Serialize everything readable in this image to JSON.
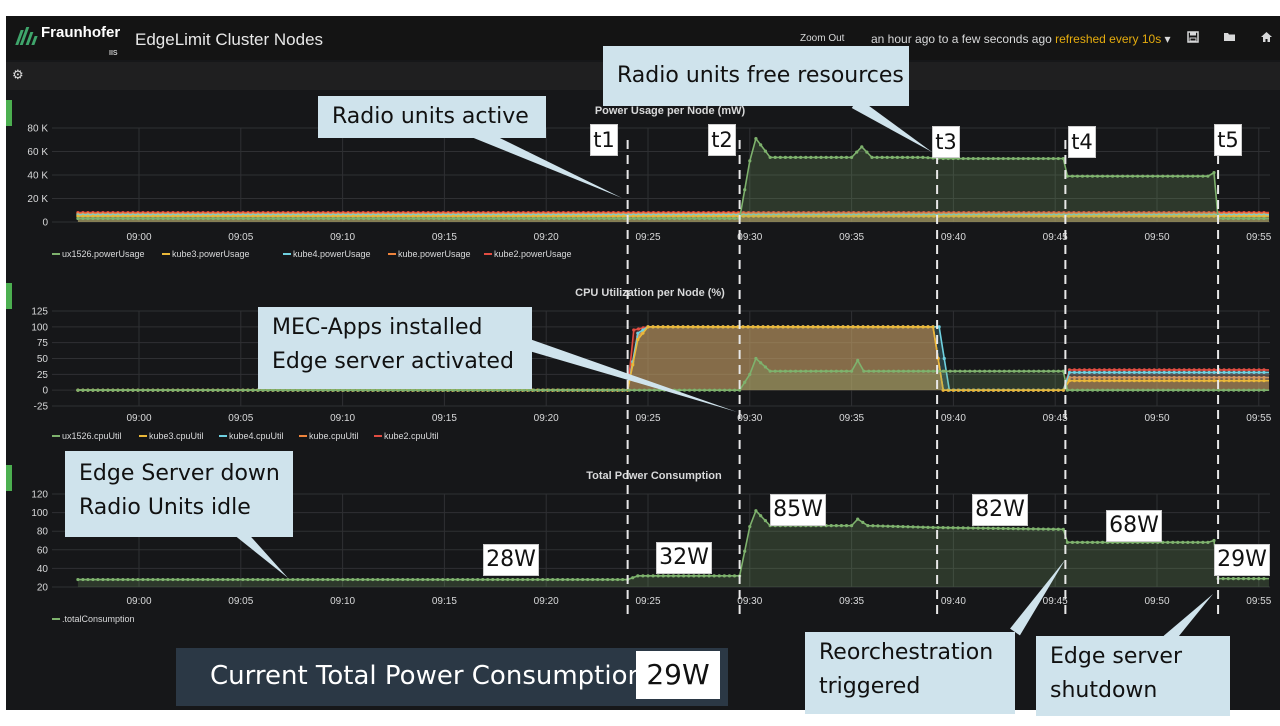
{
  "header": {
    "logo_text": "Fraunhofer",
    "logo_sub": "IIS",
    "title": "EdgeLimit Cluster Nodes",
    "zoom_out": "Zoom Out",
    "time_range": "an hour ago to a few seconds ago",
    "refresh": "refreshed every 10s",
    "icons": [
      "save-icon",
      "folder-icon",
      "home-icon"
    ]
  },
  "row_icon": "gear-icon",
  "colors": {
    "ux1526": "#7eb26d",
    "kube3": "#eab839",
    "kube4": "#6ed0e0",
    "kube": "#ef843c",
    "kube2": "#e24d42",
    "accent": "#4caf50",
    "background": "#161719"
  },
  "chart_data": [
    {
      "type": "area",
      "title": "Power Usage per Node (mW)",
      "x_ticks": [
        "09:00",
        "09:05",
        "09:10",
        "09:15",
        "09:20",
        "09:25",
        "09:30",
        "09:35",
        "09:40",
        "09:45",
        "09:50",
        "09:55"
      ],
      "y_ticks": [
        "0",
        "20 K",
        "40 K",
        "60 K",
        "80 K"
      ],
      "ylim": [
        0,
        85000
      ],
      "series": [
        {
          "name": "ux1526.powerUsage",
          "points": [
            [
              "08:57",
              3000
            ],
            [
              "09:29.5",
              3000
            ],
            [
              "09:30",
              52000
            ],
            [
              "09:30.3",
              71000
            ],
            [
              "09:31",
              55000
            ],
            [
              "09:35",
              55000
            ],
            [
              "09:35.5",
              64000
            ],
            [
              "09:36",
              55000
            ],
            [
              "09:38.5",
              55000
            ],
            [
              "09:39.5",
              54000
            ],
            [
              "09:45.4",
              54000
            ],
            [
              "09:45.6",
              39000
            ],
            [
              "09:52.5",
              39000
            ],
            [
              "09:52.8",
              42000
            ],
            [
              "09:53",
              3000
            ],
            [
              "09:55.5",
              3000
            ]
          ]
        },
        {
          "name": "kube3.powerUsage",
          "points": [
            [
              "08:57",
              5000
            ],
            [
              "09:55.5",
              5000
            ]
          ]
        },
        {
          "name": "kube4.powerUsage",
          "points": [
            [
              "08:57",
              6000
            ],
            [
              "09:55.5",
              6000
            ]
          ]
        },
        {
          "name": "kube.powerUsage",
          "points": [
            [
              "08:57",
              7000
            ],
            [
              "09:55.5",
              7000
            ]
          ]
        },
        {
          "name": "kube2.powerUsage",
          "points": [
            [
              "08:57",
              8000
            ],
            [
              "09:55.5",
              8000
            ]
          ]
        }
      ]
    },
    {
      "type": "area",
      "title": "CPU Utilization per Node (%)",
      "x_ticks": [
        "09:00",
        "09:05",
        "09:10",
        "09:15",
        "09:20",
        "09:25",
        "09:30",
        "09:35",
        "09:40",
        "09:45",
        "09:50",
        "09:55"
      ],
      "y_ticks": [
        "-25",
        "0",
        "25",
        "50",
        "75",
        "100",
        "125"
      ],
      "ylim": [
        -30,
        125
      ],
      "series": [
        {
          "name": "ux1526.cpuUtil",
          "points": [
            [
              "08:57",
              0
            ],
            [
              "09:29.5",
              0
            ],
            [
              "09:30",
              25
            ],
            [
              "09:30.3",
              50
            ],
            [
              "09:31",
              30
            ],
            [
              "09:35",
              30
            ],
            [
              "09:35.3",
              47
            ],
            [
              "09:35.6",
              30
            ],
            [
              "09:39.5",
              30
            ],
            [
              "09:39.6",
              30
            ],
            [
              "09:45.4",
              30
            ],
            [
              "09:45.6",
              0
            ],
            [
              "09:55.5",
              0
            ]
          ]
        },
        {
          "name": "kube3.cpuUtil",
          "points": [
            [
              "08:57",
              0
            ],
            [
              "09:24",
              0
            ],
            [
              "09:24.5",
              80
            ],
            [
              "09:25",
              100
            ],
            [
              "09:39",
              100
            ],
            [
              "09:39.5",
              0
            ],
            [
              "09:45.4",
              0
            ],
            [
              "09:45.7",
              15
            ],
            [
              "09:55.5",
              15
            ]
          ]
        },
        {
          "name": "kube4.cpuUtil",
          "points": [
            [
              "08:57",
              0
            ],
            [
              "09:24",
              0
            ],
            [
              "09:24.5",
              90
            ],
            [
              "09:25",
              100
            ],
            [
              "09:39",
              100
            ],
            [
              "09:39.3",
              100
            ],
            [
              "09:39.8",
              0
            ],
            [
              "09:45.4",
              0
            ],
            [
              "09:45.7",
              28
            ],
            [
              "09:55.5",
              28
            ]
          ]
        },
        {
          "name": "kube.cpuUtil",
          "points": [
            [
              "08:57",
              0
            ],
            [
              "09:24",
              0
            ],
            [
              "09:24.5",
              85
            ],
            [
              "09:25",
              100
            ],
            [
              "09:39",
              100
            ],
            [
              "09:39.5",
              0
            ],
            [
              "09:45.4",
              0
            ],
            [
              "09:45.7",
              20
            ],
            [
              "09:55.5",
              20
            ]
          ]
        },
        {
          "name": "kube2.cpuUtil",
          "points": [
            [
              "08:57",
              0
            ],
            [
              "09:24",
              0
            ],
            [
              "09:24.3",
              95
            ],
            [
              "09:25",
              100
            ],
            [
              "09:39",
              100
            ],
            [
              "09:39.5",
              0
            ],
            [
              "09:45.4",
              0
            ],
            [
              "09:45.7",
              32
            ],
            [
              "09:55.5",
              32
            ]
          ]
        }
      ]
    },
    {
      "type": "area",
      "title": "Total Power Consumption",
      "x_ticks": [
        "09:00",
        "09:05",
        "09:10",
        "09:15",
        "09:20",
        "09:25",
        "09:30",
        "09:35",
        "09:40",
        "09:45",
        "09:50",
        "09:55"
      ],
      "y_ticks": [
        "20",
        "40",
        "60",
        "80",
        "100",
        "120"
      ],
      "ylim": [
        20,
        125
      ],
      "series": [
        {
          "name": ".totalConsumption",
          "points": [
            [
              "08:57",
              28
            ],
            [
              "09:24",
              28
            ],
            [
              "09:24.5",
              32
            ],
            [
              "09:29.5",
              32
            ],
            [
              "09:30",
              85
            ],
            [
              "09:30.3",
              102
            ],
            [
              "09:31",
              86
            ],
            [
              "09:35",
              86
            ],
            [
              "09:35.3",
              93
            ],
            [
              "09:35.8",
              86
            ],
            [
              "09:39",
              84
            ],
            [
              "09:45.4",
              82
            ],
            [
              "09:45.6",
              68
            ],
            [
              "09:52.5",
              68
            ],
            [
              "09:52.8",
              70
            ],
            [
              "09:53",
              29
            ],
            [
              "09:55.5",
              29
            ]
          ]
        }
      ]
    }
  ],
  "markers": [
    {
      "label": "t1",
      "time": "09:24"
    },
    {
      "label": "t2",
      "time": "09:29.5"
    },
    {
      "label": "t3",
      "time": "09:39.2"
    },
    {
      "label": "t4",
      "time": "09:45.5"
    },
    {
      "label": "t5",
      "time": "09:53"
    }
  ],
  "callouts": {
    "radio_active": "Radio units active",
    "radio_free": "Radio units free resources",
    "mec_line1": "MEC-Apps installed",
    "mec_line2": "Edge server activated",
    "edge_down_line1": "Edge Server down",
    "edge_down_line2": "Radio Units idle",
    "reorch_line1": "Reorchestration",
    "reorch_line2": "triggered",
    "shutdown_line1": "Edge server",
    "shutdown_line2": "shutdown"
  },
  "watt_labels": [
    "28W",
    "32W",
    "85W",
    "82W",
    "68W",
    "29W"
  ],
  "current": {
    "label": "Current Total Power Consumption",
    "value": "29W"
  }
}
